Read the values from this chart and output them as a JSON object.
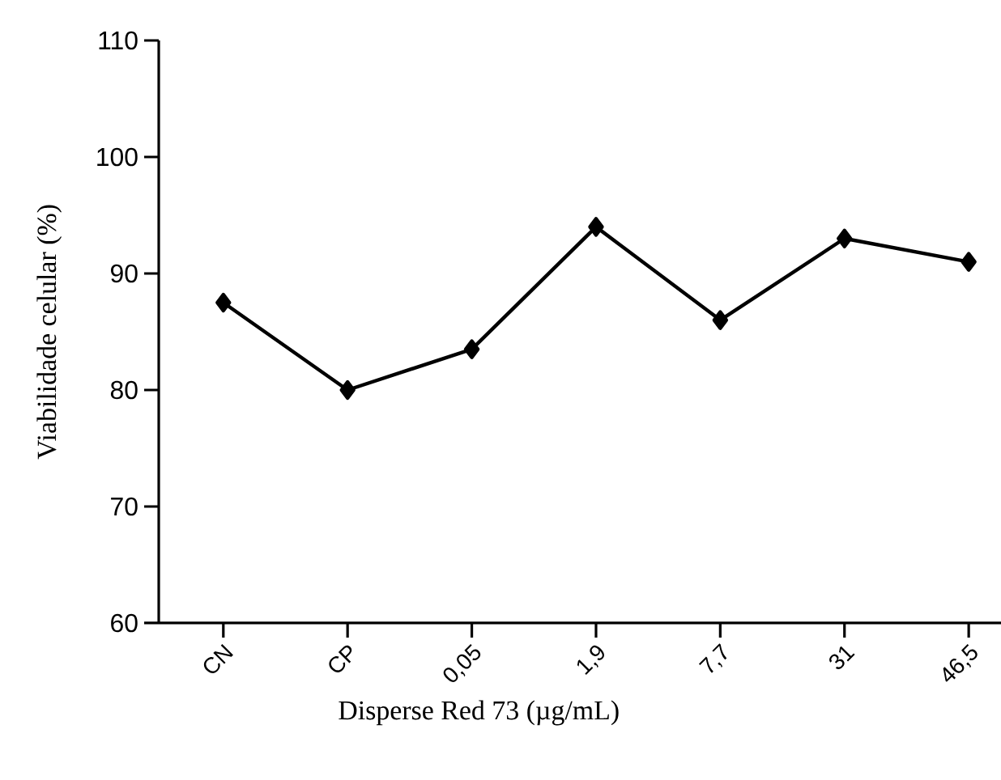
{
  "chart_data": {
    "type": "line",
    "xlabel": "Disperse Red 73 (µg/mL)",
    "ylabel": "Viabilidade celular (%)",
    "categories": [
      "CN",
      "CP",
      "0,05",
      "1,9",
      "7,7",
      "31",
      "46,5"
    ],
    "values": [
      87.5,
      80,
      83.5,
      94,
      86,
      93,
      91
    ],
    "color": "#000000",
    "marker": "diamond",
    "line_style": "solid",
    "ylim": [
      60,
      110
    ],
    "yticks": [
      60,
      70,
      80,
      90,
      100,
      110
    ]
  }
}
